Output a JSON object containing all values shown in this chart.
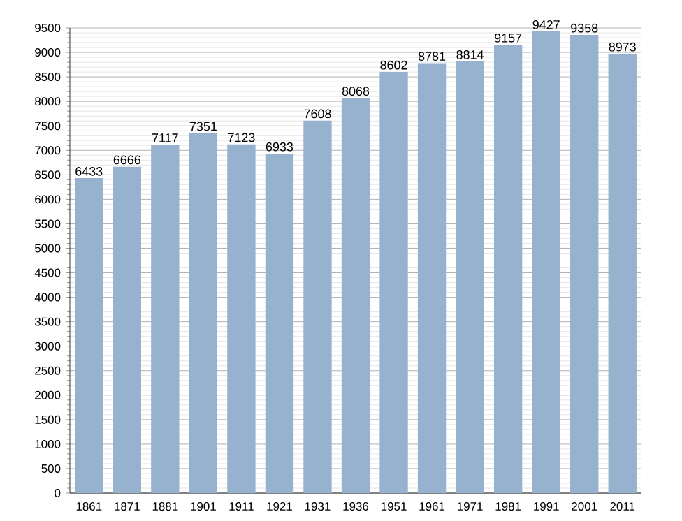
{
  "chart_data": {
    "type": "bar",
    "categories": [
      "1861",
      "1871",
      "1881",
      "1901",
      "1911",
      "1921",
      "1931",
      "1936",
      "1951",
      "1961",
      "1971",
      "1981",
      "1991",
      "2001",
      "2011"
    ],
    "values": [
      6433,
      6666,
      7117,
      7351,
      7123,
      6933,
      7608,
      8068,
      8602,
      8781,
      8814,
      9157,
      9427,
      9358,
      8973
    ],
    "color": "#97b2ce",
    "ylim": [
      0,
      9500
    ],
    "yticks": [
      0,
      500,
      1000,
      1500,
      2000,
      2500,
      3000,
      3500,
      4000,
      4500,
      5000,
      5500,
      6000,
      6500,
      7000,
      7500,
      8000,
      8500,
      9000,
      9500
    ],
    "grid": "y",
    "data_labels": true
  }
}
